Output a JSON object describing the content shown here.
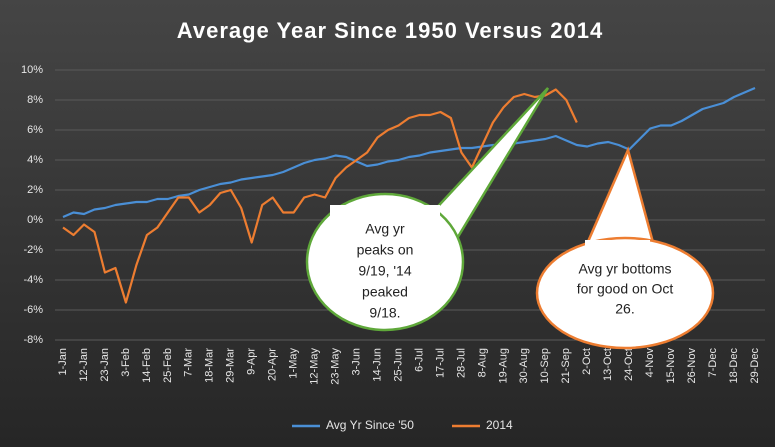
{
  "chart_data": {
    "type": "line",
    "title": "Average Year Since 1950 Versus 2014",
    "categories": [
      "1-Jan",
      null,
      "12-Jan",
      null,
      "23-Jan",
      null,
      "3-Feb",
      null,
      "14-Feb",
      null,
      "25-Feb",
      null,
      "7-Mar",
      null,
      "18-Mar",
      null,
      "29-Mar",
      null,
      "9-Apr",
      null,
      "20-Apr",
      null,
      "1-May",
      null,
      "12-May",
      null,
      "23-May",
      null,
      "3-Jun",
      null,
      "14-Jun",
      null,
      "25-Jun",
      null,
      "6-Jul",
      null,
      "17-Jul",
      null,
      "28-Jul",
      null,
      "8-Aug",
      null,
      "19-Aug",
      null,
      "30-Aug",
      null,
      "10-Sep",
      null,
      "21-Sep",
      null,
      "2-Oct",
      null,
      "13-Oct",
      null,
      "24-Oct",
      null,
      "4-Nov",
      null,
      "15-Nov",
      null,
      "26-Nov",
      null,
      "7-Dec",
      null,
      "18-Dec",
      null,
      "29-Dec"
    ],
    "series": [
      {
        "name": "Avg Yr Since '50",
        "color": "#4a8fd6",
        "values": [
          0.2,
          0.5,
          0.4,
          0.7,
          0.8,
          1.0,
          1.1,
          1.2,
          1.2,
          1.4,
          1.4,
          1.6,
          1.7,
          2.0,
          2.2,
          2.4,
          2.5,
          2.7,
          2.8,
          2.9,
          3.0,
          3.2,
          3.5,
          3.8,
          4.0,
          4.1,
          4.3,
          4.2,
          3.9,
          3.6,
          3.7,
          3.9,
          4.0,
          4.2,
          4.3,
          4.5,
          4.6,
          4.7,
          4.8,
          4.8,
          4.9,
          5.0,
          5.0,
          5.1,
          5.2,
          5.3,
          5.4,
          5.6,
          5.3,
          5.0,
          4.9,
          5.1,
          5.2,
          5.0,
          4.7,
          5.4,
          6.1,
          6.3,
          6.3,
          6.6,
          7.0,
          7.4,
          7.6,
          7.8,
          8.2,
          8.5,
          8.8
        ]
      },
      {
        "name": "2014",
        "color": "#ed7d31",
        "values": [
          -0.5,
          -1,
          -0.3,
          -0.8,
          -3.5,
          -3.2,
          -5.5,
          -3,
          -1,
          -0.5,
          0.5,
          1.5,
          1.5,
          0.5,
          1,
          1.8,
          2,
          0.8,
          -1.5,
          1,
          1.5,
          0.5,
          0.5,
          1.5,
          1.7,
          1.5,
          2.8,
          3.5,
          4,
          4.5,
          5.5,
          6,
          6.3,
          6.8,
          7,
          7,
          7.2,
          6.8,
          4.5,
          3.5,
          5,
          6.5,
          7.5,
          8.2,
          8.4,
          8.2,
          8.3,
          8.7,
          8,
          6.5,
          null,
          null,
          null,
          null,
          null,
          null,
          null,
          null,
          null,
          null,
          null,
          null,
          null,
          null,
          null,
          null,
          null
        ]
      }
    ],
    "ylim": [
      -8,
      10
    ],
    "yticks": [
      {
        "value": -8,
        "label": "-8%"
      },
      {
        "value": -6,
        "label": "-6%"
      },
      {
        "value": -4,
        "label": "-4%"
      },
      {
        "value": -2,
        "label": "-2%"
      },
      {
        "value": 0,
        "label": "0%"
      },
      {
        "value": 2,
        "label": "2%"
      },
      {
        "value": 4,
        "label": "4%"
      },
      {
        "value": 6,
        "label": "6%"
      },
      {
        "value": 8,
        "label": "8%"
      },
      {
        "value": 10,
        "label": "10%"
      }
    ],
    "grid": true,
    "legend": "bottom",
    "annotations": [
      {
        "lines": [
          "Avg yr",
          "peaks on",
          "9/19, '14",
          "peaked",
          "9/18."
        ],
        "border": "#5fa83a"
      },
      {
        "lines": [
          "Avg yr bottoms",
          "for good on Oct",
          "26."
        ],
        "border": "#ed7d31"
      }
    ]
  }
}
